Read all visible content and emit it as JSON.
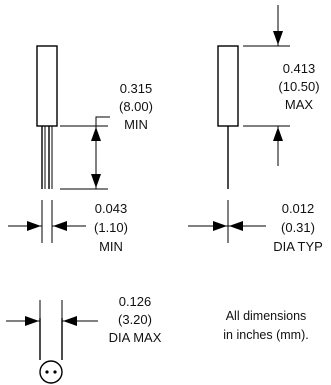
{
  "dimensions": {
    "body_length_min": {
      "inch": "0.315",
      "mm": "(8.00)",
      "qualifier": "MIN"
    },
    "overall_height_max": {
      "inch": "0.413",
      "mm": "(10.50)",
      "qualifier": "MAX"
    },
    "lead_spacing_min": {
      "inch": "0.043",
      "mm": "(1.10)",
      "qualifier": "MIN"
    },
    "lead_diameter_typ": {
      "inch": "0.012",
      "mm": "(0.31)",
      "qualifier": "DIA TYP"
    },
    "body_diameter_max": {
      "inch": "0.126",
      "mm": "(3.20)",
      "qualifier": "DIA MAX"
    }
  },
  "note": {
    "line1": "All dimensions",
    "line2": "in inches (mm)."
  }
}
